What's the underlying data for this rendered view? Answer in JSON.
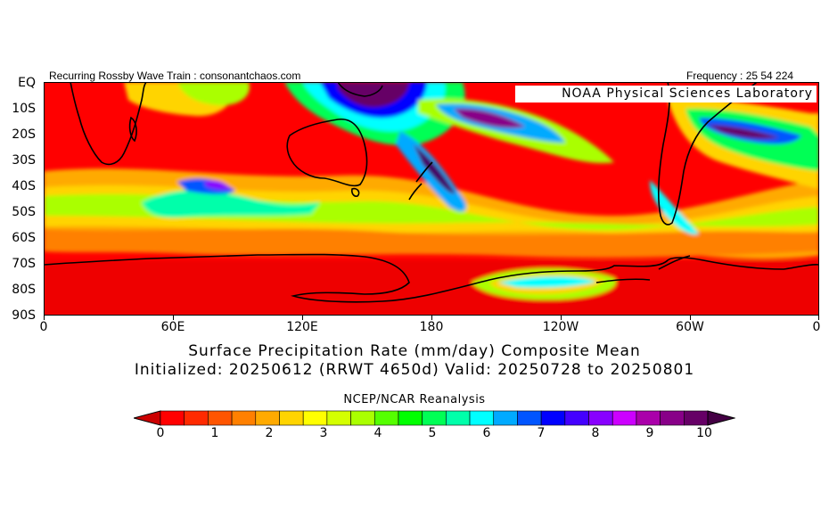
{
  "header": {
    "left": "Recurring Rossby Wave Train : consonantchaos.com",
    "right": "Frequency : 25 54 224"
  },
  "lab_label": "NOAA Physical Sciences Laboratory",
  "map": {
    "region": "Southern Hemisphere, EQ to 90S, 0 to 360",
    "y_ticks": [
      "EQ",
      "10S",
      "20S",
      "30S",
      "40S",
      "50S",
      "60S",
      "70S",
      "80S",
      "90S"
    ],
    "x_ticks": [
      "0",
      "60E",
      "120E",
      "180",
      "120W",
      "60W",
      "0"
    ],
    "field": "Surface Precipitation Rate (mm/day)"
  },
  "title": {
    "line1": "Surface Precipitation Rate (mm/day) Composite Mean",
    "line2": "Initialized: 20250612 (RRWT 4650d) Valid: 20250728 to 20250801"
  },
  "source": "NCEP/NCAR Reanalysis",
  "colorbar": {
    "labels": [
      "0",
      "1",
      "2",
      "3",
      "4",
      "5",
      "6",
      "7",
      "8",
      "9",
      "10"
    ],
    "colors": [
      "#ff0000",
      "#ff2a00",
      "#ff5500",
      "#ff8000",
      "#ffaa00",
      "#ffd400",
      "#ffff00",
      "#d4ff00",
      "#aaff00",
      "#55ff00",
      "#00ff00",
      "#00ff55",
      "#00ffaa",
      "#00ffff",
      "#00aaff",
      "#0055ff",
      "#0000ff",
      "#4400ff",
      "#8800ff",
      "#cc00ff",
      "#aa00aa",
      "#880088",
      "#660066"
    ],
    "under": "#cc0000",
    "over": "#440044"
  }
}
